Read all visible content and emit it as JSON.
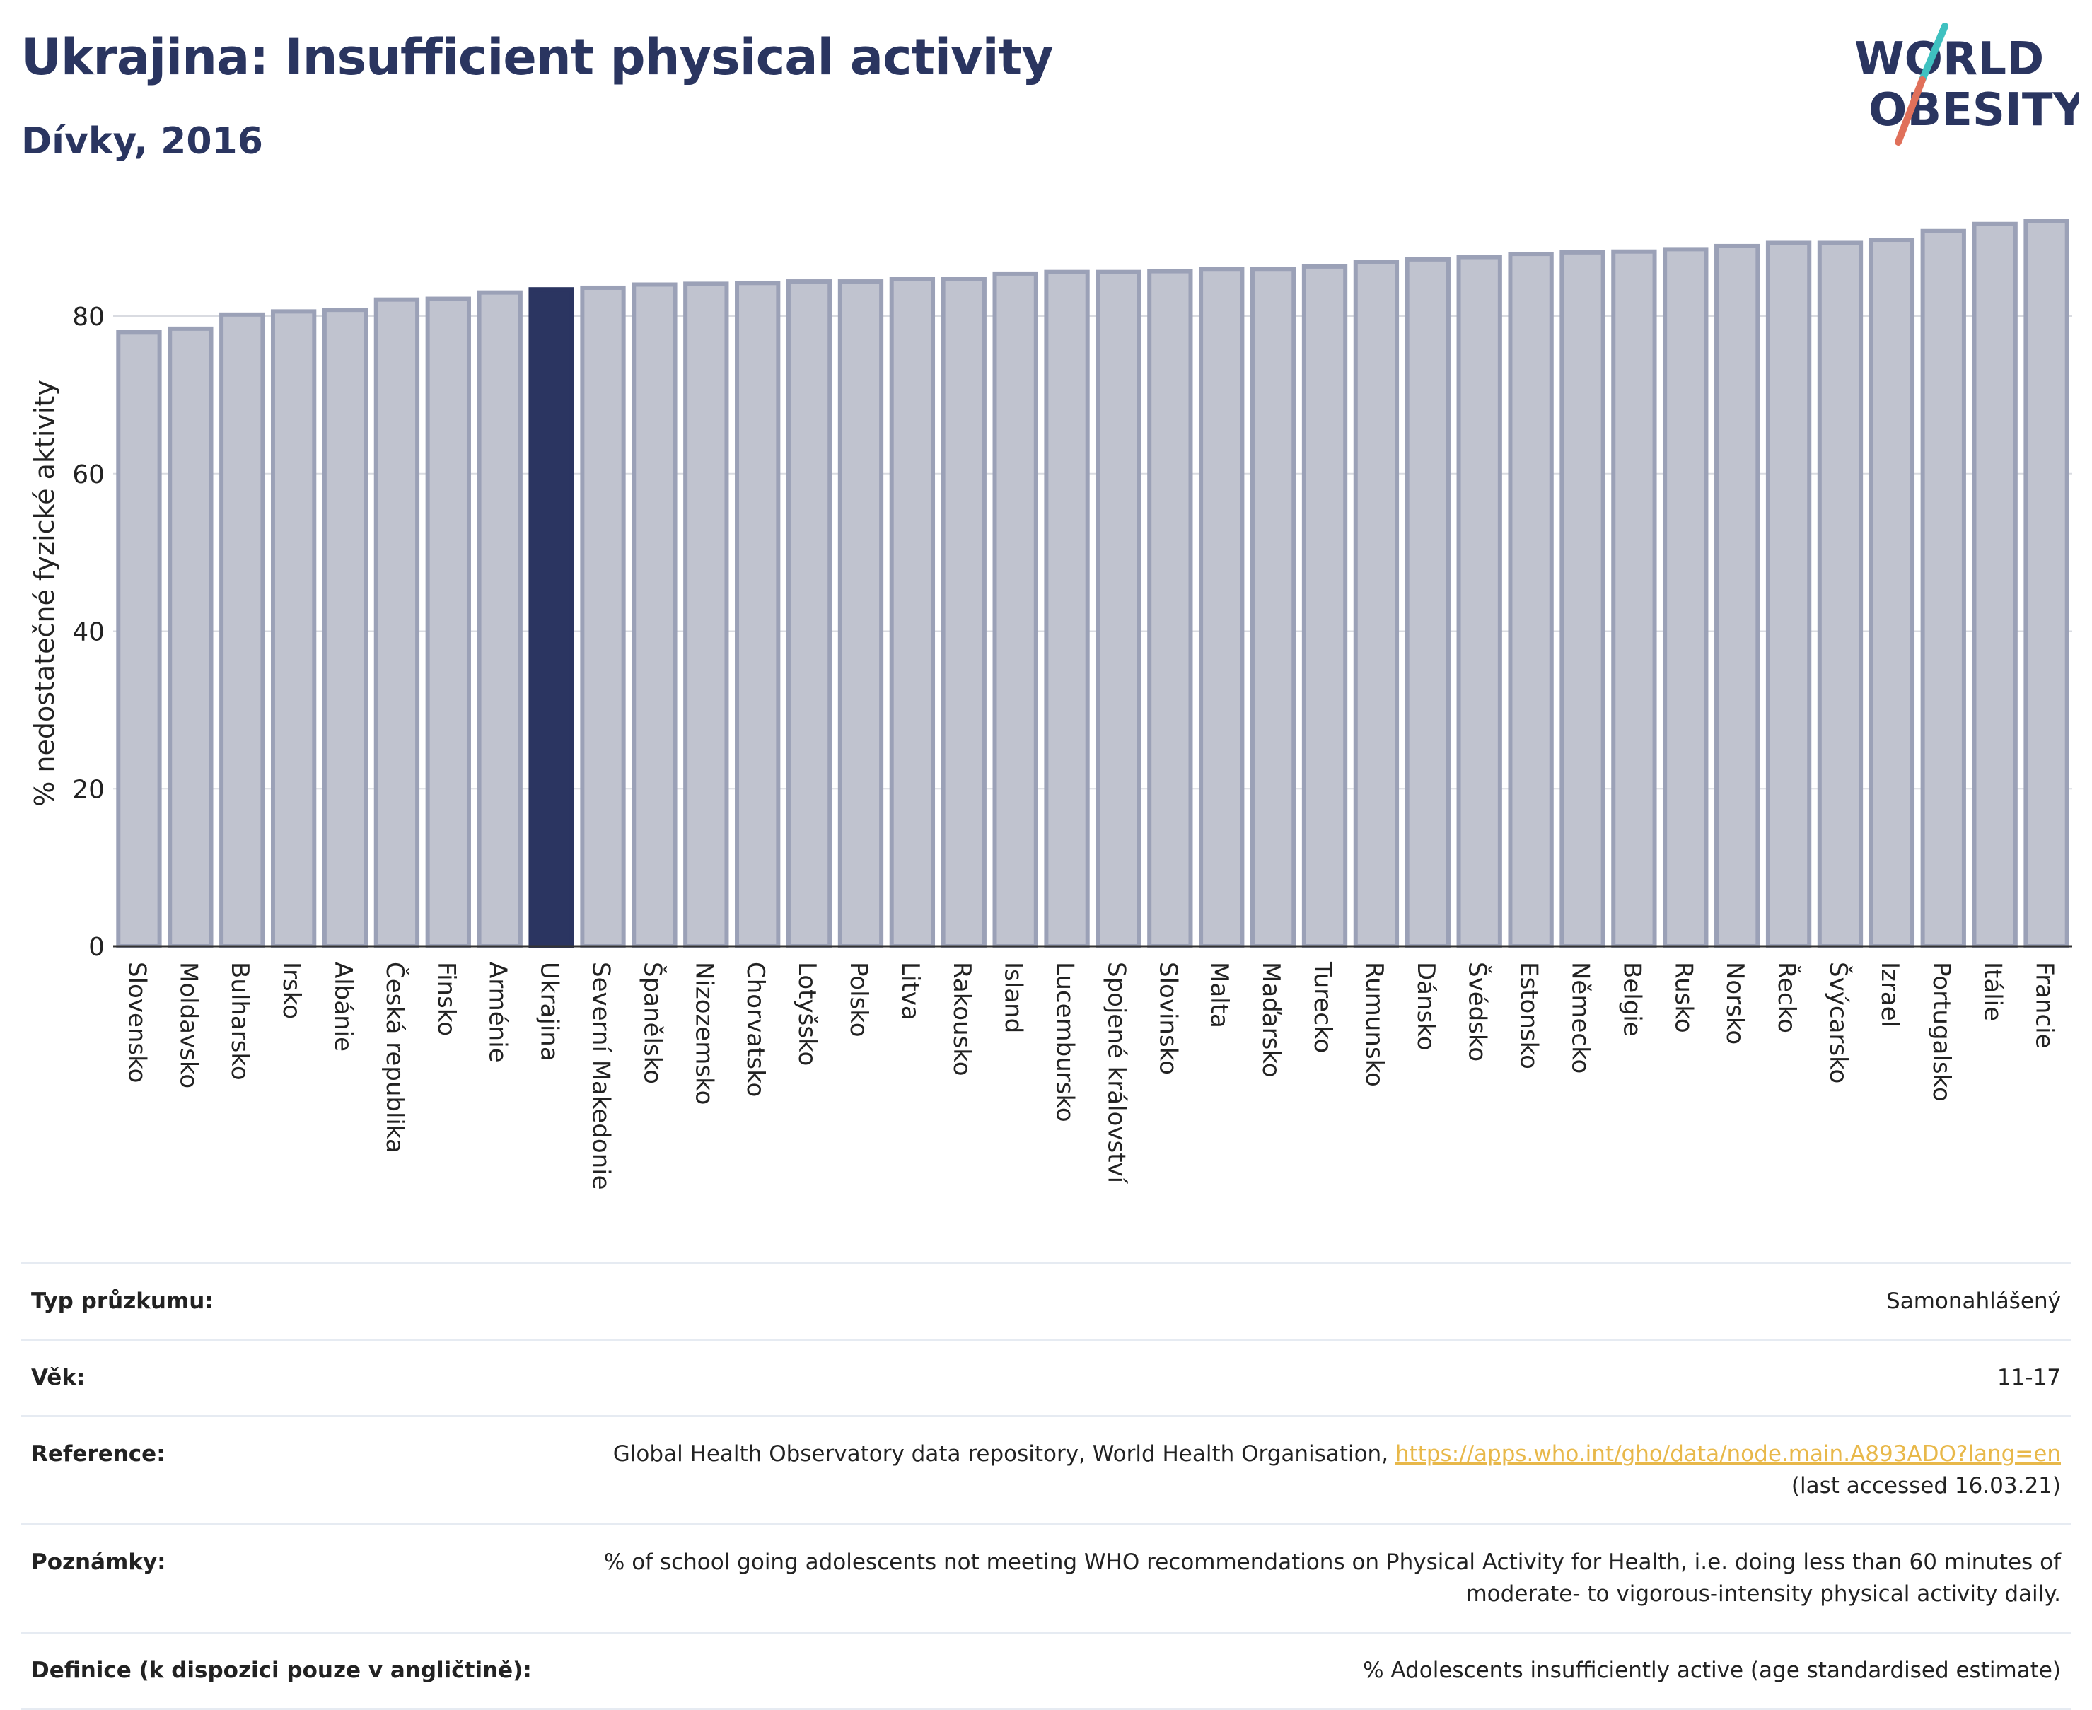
{
  "header": {
    "title": "Ukrajina: Insufficient physical activity",
    "subtitle": "Dívky, 2016"
  },
  "logo": {
    "line1": "WORLD",
    "line2": "OBESITY",
    "icon": "world-obesity-logo"
  },
  "colors": {
    "highlight_bar": "#2b3561",
    "bar_fill": "#c0c3cf",
    "bar_stroke": "#9ba1b7",
    "title": "#2a3560",
    "link": "#e8b84a"
  },
  "chart_data": {
    "type": "bar",
    "title": "Ukrajina: Insufficient physical activity",
    "subtitle": "Dívky, 2016",
    "xlabel": "",
    "ylabel": "% nedostatečné fyzické aktivity",
    "ylim": [
      0,
      95
    ],
    "yticks": [
      0,
      20,
      40,
      60,
      80
    ],
    "grid": true,
    "highlight": "Ukrajina",
    "categories": [
      "Slovensko",
      "Moldavsko",
      "Bulharsko",
      "Irsko",
      "Albánie",
      "Česká republika",
      "Finsko",
      "Arménie",
      "Ukrajina",
      "Severní Makedonie",
      "Španělsko",
      "Nizozemsko",
      "Chorvatsko",
      "Lotyšsko",
      "Polsko",
      "Litva",
      "Rakousko",
      "Island",
      "Lucembursko",
      "Spojené království",
      "Slovinsko",
      "Malta",
      "Maďarsko",
      "Turecko",
      "Rumunsko",
      "Dánsko",
      "Švédsko",
      "Estonsko",
      "Německo",
      "Belgie",
      "Rusko",
      "Norsko",
      "Řecko",
      "Švýcarsko",
      "Izrael",
      "Portugalsko",
      "Itálie",
      "Francie"
    ],
    "values": [
      78.0,
      78.4,
      80.2,
      80.6,
      80.8,
      82.1,
      82.2,
      83.0,
      83.4,
      83.6,
      84.0,
      84.1,
      84.2,
      84.4,
      84.4,
      84.7,
      84.7,
      85.4,
      85.6,
      85.6,
      85.7,
      86.0,
      86.0,
      86.3,
      86.9,
      87.2,
      87.5,
      87.9,
      88.1,
      88.2,
      88.5,
      88.9,
      89.3,
      89.3,
      89.7,
      90.8,
      91.7,
      92.1
    ]
  },
  "info": {
    "rows": [
      {
        "label": "Typ průzkumu:",
        "value": "Samonahlášený"
      },
      {
        "label": "Věk:",
        "value": "11-17"
      },
      {
        "label": "Reference:",
        "value": "Global Health Observatory data repository, World Health Organisation, ",
        "link": "https://apps.who.int/gho/data/node.main.A893ADO?lang=en",
        "value2": "(last accessed 16.03.21)"
      },
      {
        "label": "Poznámky:",
        "value": "% of school going adolescents not meeting WHO recommendations on Physical Activity for Health, i.e. doing less than 60 minutes of",
        "value2": "moderate- to vigorous-intensity physical activity daily."
      },
      {
        "label": "Definice (k dispozici pouze v angličtině):",
        "value": "% Adolescents insufficiently active (age standardised estimate)"
      }
    ]
  }
}
